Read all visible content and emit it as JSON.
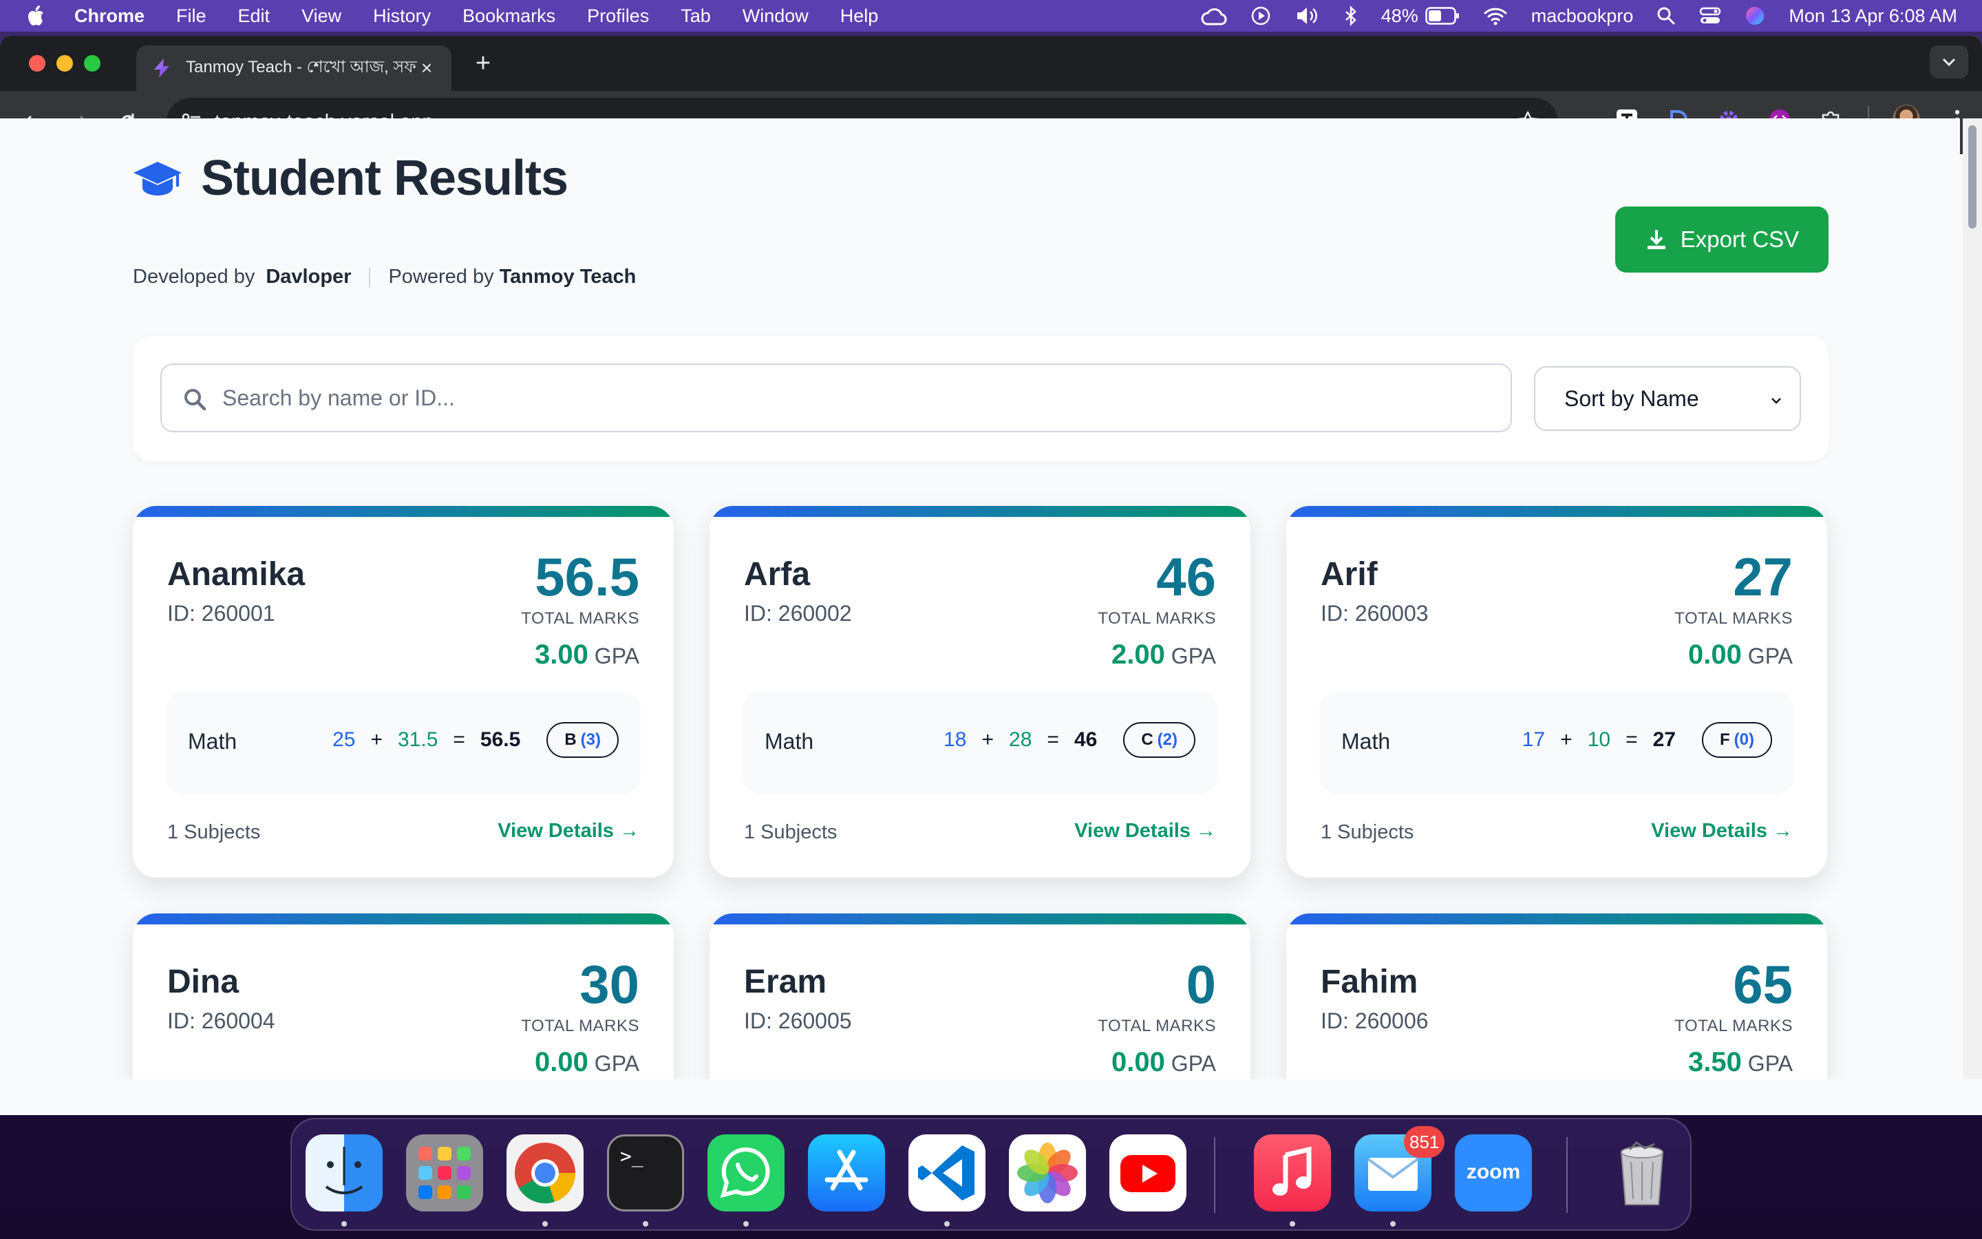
{
  "menubar": {
    "app_name": "Chrome",
    "menus": [
      "File",
      "Edit",
      "View",
      "History",
      "Bookmarks",
      "Profiles",
      "Tab",
      "Window",
      "Help"
    ],
    "battery": "48%",
    "hostname": "macbookpro",
    "clock": "Mon 13 Apr  6:08 AM"
  },
  "browser": {
    "tab_title": "Tanmoy Teach - শেখো আজ, সফল",
    "url": "tanmoy-teach.vercel.app"
  },
  "page": {
    "title": "Student Results",
    "developed_by_label": "Developed by",
    "developer": "Davloper",
    "powered_by_label": "Powered by",
    "powered_by": "Tanmoy Teach",
    "export_label": "Export CSV",
    "search_placeholder": "Search by name or ID...",
    "sort_label": "Sort by Name",
    "total_marks_label": "TOTAL MARKS",
    "gpa_label": "GPA",
    "view_details_label": "View Details →"
  },
  "students": [
    {
      "name": "Anamika",
      "id": "ID: 260001",
      "total": "56.5",
      "gpa": "3.00",
      "subject": "Math",
      "m1": "25",
      "m2": "31.5",
      "sum": "56.5",
      "grade": "B",
      "grade_point": "(3)",
      "subjects_count": "1 Subjects"
    },
    {
      "name": "Arfa",
      "id": "ID: 260002",
      "total": "46",
      "gpa": "2.00",
      "subject": "Math",
      "m1": "18",
      "m2": "28",
      "sum": "46",
      "grade": "C",
      "grade_point": "(2)",
      "subjects_count": "1 Subjects"
    },
    {
      "name": "Arif",
      "id": "ID: 260003",
      "total": "27",
      "gpa": "0.00",
      "subject": "Math",
      "m1": "17",
      "m2": "10",
      "sum": "27",
      "grade": "F",
      "grade_point": "(0)",
      "subjects_count": "1 Subjects"
    },
    {
      "name": "Dina",
      "id": "ID: 260004",
      "total": "30",
      "gpa": "0.00"
    },
    {
      "name": "Eram",
      "id": "ID: 260005",
      "total": "0",
      "gpa": "0.00"
    },
    {
      "name": "Fahim",
      "id": "ID: 260006",
      "total": "65",
      "gpa": "3.50"
    }
  ],
  "dock": {
    "apps": [
      "finder-icon",
      "launchpad-icon",
      "chrome-icon",
      "terminal-icon",
      "whatsapp-icon",
      "app-store-icon",
      "vscode-icon",
      "photos-icon",
      "youtube-icon",
      "music-icon",
      "mail-icon",
      "zoom-icon",
      "trash-icon"
    ],
    "mail_badge": "851",
    "zoom_label": "zoom",
    "terminal_label": ">_"
  },
  "colors": {
    "accent_green": "#16a34a",
    "total_teal": "#0e7490",
    "gpa_green": "#059669",
    "mark_blue": "#2563eb"
  }
}
